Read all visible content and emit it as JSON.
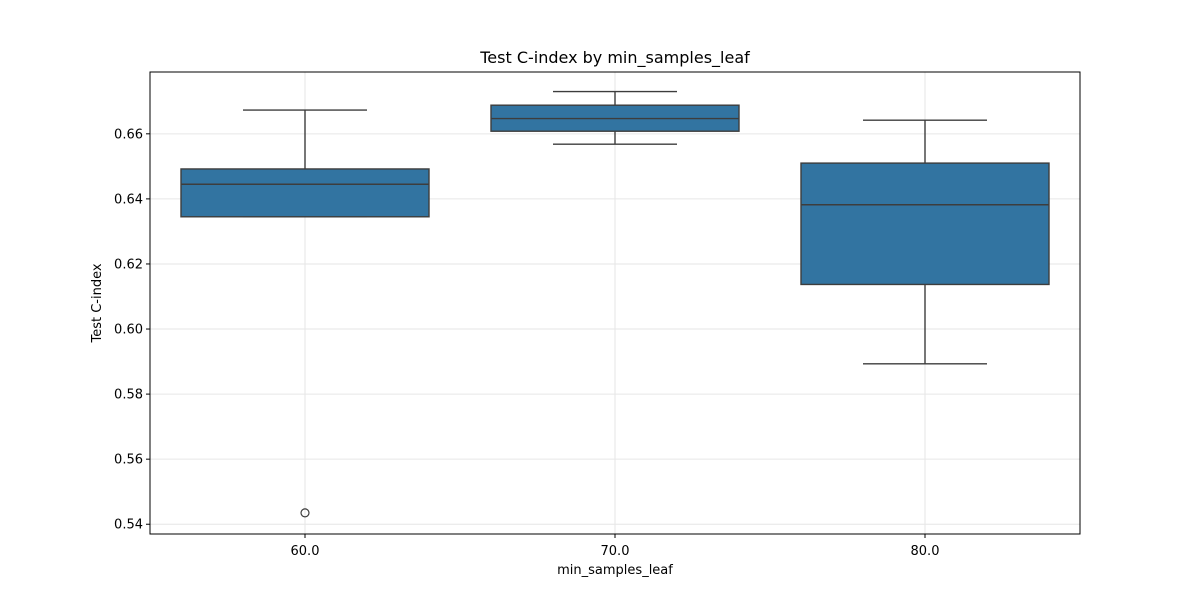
{
  "chart_data": {
    "type": "box",
    "title": "Test C-index by min_samples_leaf",
    "xlabel": "min_samples_leaf",
    "ylabel": "Test C-index",
    "categories": [
      "60.0",
      "70.0",
      "80.0"
    ],
    "ylim": [
      0.537,
      0.679
    ],
    "yticks": [
      "0.54",
      "0.56",
      "0.58",
      "0.60",
      "0.62",
      "0.64",
      "0.66"
    ],
    "grid": true,
    "box_color": "#3274a1",
    "line_color": "#3d3d3d",
    "series": [
      {
        "category": "60.0",
        "whisker_low": 0.6345,
        "q1": 0.6345,
        "median": 0.6445,
        "q3": 0.6492,
        "whisker_high": 0.6673,
        "outliers": [
          0.5435
        ]
      },
      {
        "category": "70.0",
        "whisker_low": 0.6568,
        "q1": 0.6608,
        "median": 0.6647,
        "q3": 0.6688,
        "whisker_high": 0.673,
        "outliers": []
      },
      {
        "category": "80.0",
        "whisker_low": 0.5893,
        "q1": 0.6137,
        "median": 0.6382,
        "q3": 0.651,
        "whisker_high": 0.6642,
        "outliers": []
      }
    ]
  }
}
